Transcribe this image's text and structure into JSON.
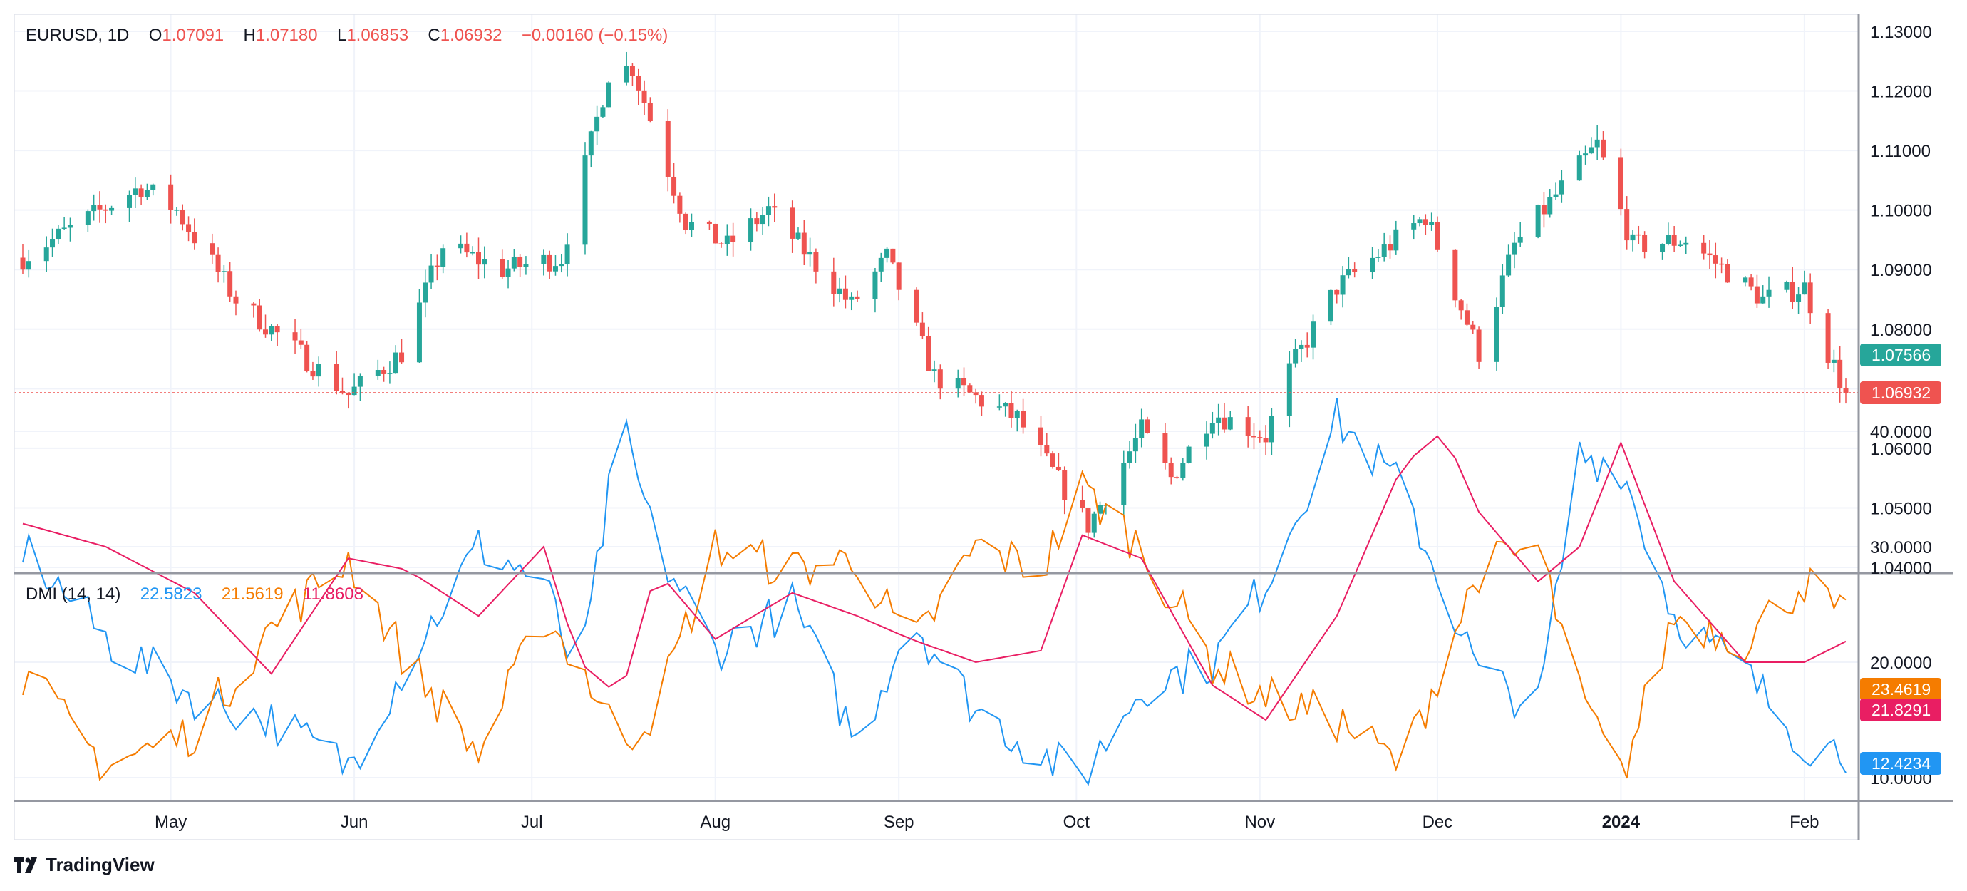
{
  "header": {
    "symbol": "EURUSD",
    "interval": "1D",
    "o_label": "O",
    "o_value": "1.07091",
    "h_label": "H",
    "h_value": "1.07180",
    "l_label": "L",
    "l_value": "1.06853",
    "c_label": "C",
    "c_value": "1.06932",
    "change": "−0.00160 (−0.15%)"
  },
  "indicator": {
    "name": "DMI (14, 14)",
    "v1": "22.5823",
    "v2": "21.5619",
    "v3": "11.8608"
  },
  "branding": {
    "logo_text": "TradingView",
    "logo_icon": "tradingview-logo-icon"
  },
  "colors": {
    "up": "#26a69a",
    "down": "#ef5350",
    "plus_di": "#2196f3",
    "minus_di": "#f57c00",
    "adx": "#e91e63",
    "grid": "#f0f3fa",
    "axis_text": "#131722"
  },
  "chart_data": [
    {
      "type": "candlestick",
      "title": "EURUSD, 1D",
      "ylim": [
        1.04,
        1.13
      ],
      "y_ticks": [
        "1.13000",
        "1.12000",
        "1.11000",
        "1.10000",
        "1.09000",
        "1.08000",
        "1.07000",
        "1.06000",
        "1.05000",
        "1.04000"
      ],
      "x_ticks": [
        "May",
        "Jun",
        "Jul",
        "Aug",
        "Sep",
        "Oct",
        "Nov",
        "Dec",
        "2024",
        "Feb"
      ],
      "x_tick_dates": [
        "2023-05-01",
        "2023-06-01",
        "2023-07-01",
        "2023-08-01",
        "2023-09-01",
        "2023-10-01",
        "2023-11-01",
        "2023-12-01",
        "2024-01-01",
        "2024-02-01"
      ],
      "x_range": [
        "2023-04-06",
        "2024-02-08"
      ],
      "price_line": 1.06932,
      "price_labels": [
        {
          "value": 1.07566,
          "text": "1.07566",
          "color": "#26a69a"
        },
        {
          "value": 1.06932,
          "text": "1.06932",
          "color": "#ef5350"
        }
      ],
      "close_keypoints": [
        [
          "2023-04-06",
          1.092
        ],
        [
          "2023-04-26",
          1.104
        ],
        [
          "2023-05-02",
          1.1
        ],
        [
          "2023-05-12",
          1.085
        ],
        [
          "2023-05-31",
          1.069
        ],
        [
          "2023-06-09",
          1.076
        ],
        [
          "2023-06-16",
          1.094
        ],
        [
          "2023-06-26",
          1.09
        ],
        [
          "2023-07-06",
          1.092
        ],
        [
          "2023-07-14",
          1.123
        ],
        [
          "2023-07-18",
          1.124
        ],
        [
          "2023-07-27",
          1.098
        ],
        [
          "2023-08-03",
          1.094
        ],
        [
          "2023-08-10",
          1.1
        ],
        [
          "2023-08-24",
          1.084
        ],
        [
          "2023-08-30",
          1.092
        ],
        [
          "2023-09-07",
          1.072
        ],
        [
          "2023-09-21",
          1.065
        ],
        [
          "2023-10-03",
          1.047
        ],
        [
          "2023-10-12",
          1.063
        ],
        [
          "2023-10-17",
          1.055
        ],
        [
          "2023-10-24",
          1.066
        ],
        [
          "2023-11-02",
          1.062
        ],
        [
          "2023-11-06",
          1.073
        ],
        [
          "2023-11-14",
          1.087
        ],
        [
          "2023-11-29",
          1.099
        ],
        [
          "2023-12-08",
          1.076
        ],
        [
          "2023-12-14",
          1.094
        ],
        [
          "2023-12-28",
          1.111
        ],
        [
          "2024-01-03",
          1.094
        ],
        [
          "2024-01-12",
          1.095
        ],
        [
          "2024-01-25",
          1.085
        ],
        [
          "2024-02-01",
          1.087
        ],
        [
          "2024-02-05",
          1.076
        ],
        [
          "2024-02-08",
          1.0693
        ]
      ]
    },
    {
      "type": "line",
      "title": "DMI (14, 14)",
      "ylim": [
        5,
        45
      ],
      "y_ticks": [
        "40.0000",
        "30.0000",
        "20.0000",
        "10.0000"
      ],
      "price_labels": [
        {
          "value": 23.4619,
          "text": "23.4619",
          "color": "#f57c00"
        },
        {
          "value": 21.8291,
          "text": "21.8291",
          "color": "#e91e63"
        },
        {
          "value": 12.4234,
          "text": "12.4234",
          "color": "#2196f3"
        }
      ],
      "series": [
        {
          "key": "plus",
          "color": "#2196f3",
          "points": [
            [
              "2023-04-06",
              30
            ],
            [
              "2023-04-20",
              22
            ],
            [
              "2023-05-05",
              17
            ],
            [
              "2023-05-18",
              15
            ],
            [
              "2023-05-31",
              11
            ],
            [
              "2023-06-10",
              20
            ],
            [
              "2023-06-22",
              30
            ],
            [
              "2023-07-03",
              27
            ],
            [
              "2023-07-09",
              18
            ],
            [
              "2023-07-16",
              41
            ],
            [
              "2023-07-22",
              30
            ],
            [
              "2023-08-01",
              21
            ],
            [
              "2023-08-14",
              25
            ],
            [
              "2023-08-25",
              13
            ],
            [
              "2023-09-03",
              24
            ],
            [
              "2023-09-14",
              16
            ],
            [
              "2023-09-25",
              12
            ],
            [
              "2023-10-02",
              10
            ],
            [
              "2023-10-12",
              18
            ],
            [
              "2023-10-24",
              20
            ],
            [
              "2023-11-02",
              27
            ],
            [
              "2023-11-09",
              35
            ],
            [
              "2023-11-14",
              41
            ],
            [
              "2023-11-25",
              35
            ],
            [
              "2023-12-08",
              19
            ],
            [
              "2023-12-18",
              16
            ],
            [
              "2023-12-25",
              38
            ],
            [
              "2024-01-01",
              37
            ],
            [
              "2024-01-10",
              24
            ],
            [
              "2024-01-22",
              19
            ],
            [
              "2024-02-01",
              13
            ],
            [
              "2024-02-08",
              12.4
            ]
          ]
        },
        {
          "key": "minus",
          "color": "#f57c00",
          "points": [
            [
              "2023-04-06",
              19
            ],
            [
              "2023-04-20",
              11
            ],
            [
              "2023-05-05",
              14
            ],
            [
              "2023-05-18",
              23
            ],
            [
              "2023-05-31",
              29
            ],
            [
              "2023-06-10",
              20
            ],
            [
              "2023-06-22",
              12
            ],
            [
              "2023-07-03",
              24
            ],
            [
              "2023-07-09",
              20
            ],
            [
              "2023-07-16",
              13
            ],
            [
              "2023-07-22",
              16
            ],
            [
              "2023-08-01",
              30
            ],
            [
              "2023-08-14",
              28
            ],
            [
              "2023-08-25",
              29
            ],
            [
              "2023-09-03",
              21
            ],
            [
              "2023-09-14",
              30
            ],
            [
              "2023-09-25",
              28
            ],
            [
              "2023-10-02",
              35
            ],
            [
              "2023-10-12",
              30
            ],
            [
              "2023-10-24",
              20
            ],
            [
              "2023-11-02",
              17
            ],
            [
              "2023-11-14",
              15
            ],
            [
              "2023-11-25",
              11
            ],
            [
              "2023-12-08",
              28
            ],
            [
              "2023-12-18",
              30
            ],
            [
              "2023-12-25",
              17
            ],
            [
              "2024-01-01",
              10
            ],
            [
              "2024-01-10",
              24
            ],
            [
              "2024-01-22",
              22
            ],
            [
              "2024-02-01",
              27
            ],
            [
              "2024-02-08",
              23.5
            ]
          ]
        },
        {
          "key": "adx",
          "color": "#e91e63",
          "points": [
            [
              "2023-04-06",
              32
            ],
            [
              "2023-04-20",
              30
            ],
            [
              "2023-05-05",
              26
            ],
            [
              "2023-05-18",
              19
            ],
            [
              "2023-05-31",
              29
            ],
            [
              "2023-06-10",
              28
            ],
            [
              "2023-06-22",
              24
            ],
            [
              "2023-07-03",
              30
            ],
            [
              "2023-07-09",
              20
            ],
            [
              "2023-07-16",
              17
            ],
            [
              "2023-07-22",
              28
            ],
            [
              "2023-08-01",
              22
            ],
            [
              "2023-08-14",
              26
            ],
            [
              "2023-08-25",
              24
            ],
            [
              "2023-09-03",
              22
            ],
            [
              "2023-09-14",
              20
            ],
            [
              "2023-09-25",
              21
            ],
            [
              "2023-10-02",
              31
            ],
            [
              "2023-10-12",
              29
            ],
            [
              "2023-10-24",
              18
            ],
            [
              "2023-11-02",
              15
            ],
            [
              "2023-11-14",
              24
            ],
            [
              "2023-11-25",
              37
            ],
            [
              "2023-12-02",
              40
            ],
            [
              "2023-12-08",
              33
            ],
            [
              "2023-12-18",
              27
            ],
            [
              "2023-12-25",
              30
            ],
            [
              "2024-01-01",
              39
            ],
            [
              "2024-01-10",
              27
            ],
            [
              "2024-01-22",
              20
            ],
            [
              "2024-02-01",
              20
            ],
            [
              "2024-02-08",
              21.8
            ]
          ]
        }
      ]
    }
  ]
}
